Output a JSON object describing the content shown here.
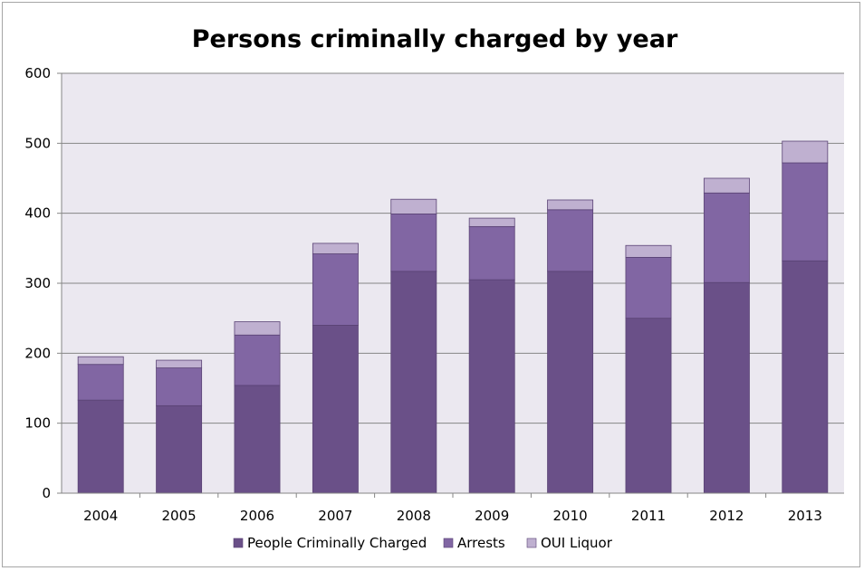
{
  "chart_data": {
    "type": "bar",
    "stacked": true,
    "title": "Persons criminally charged by year",
    "xlabel": "",
    "ylabel": "",
    "categories": [
      "2004",
      "2005",
      "2006",
      "2007",
      "2008",
      "2009",
      "2010",
      "2011",
      "2012",
      "2013"
    ],
    "series": [
      {
        "name": "People Criminally Charged",
        "color": "#6a5088",
        "values": [
          133,
          125,
          154,
          240,
          317,
          305,
          317,
          250,
          301,
          332
        ]
      },
      {
        "name": "Arrests",
        "color": "#8166a3",
        "values": [
          51,
          54,
          72,
          102,
          82,
          76,
          88,
          87,
          128,
          140
        ]
      },
      {
        "name": "OUI Liquor",
        "color": "#bfb0d0",
        "values": [
          11,
          11,
          19,
          15,
          21,
          12,
          14,
          17,
          21,
          31
        ]
      }
    ],
    "ylim": [
      0,
      600
    ],
    "yticks": [
      "0",
      "100",
      "200",
      "300",
      "400",
      "500",
      "600"
    ],
    "grid": true,
    "legend_position": "bottom",
    "plot_background": "#ebe8f0"
  }
}
